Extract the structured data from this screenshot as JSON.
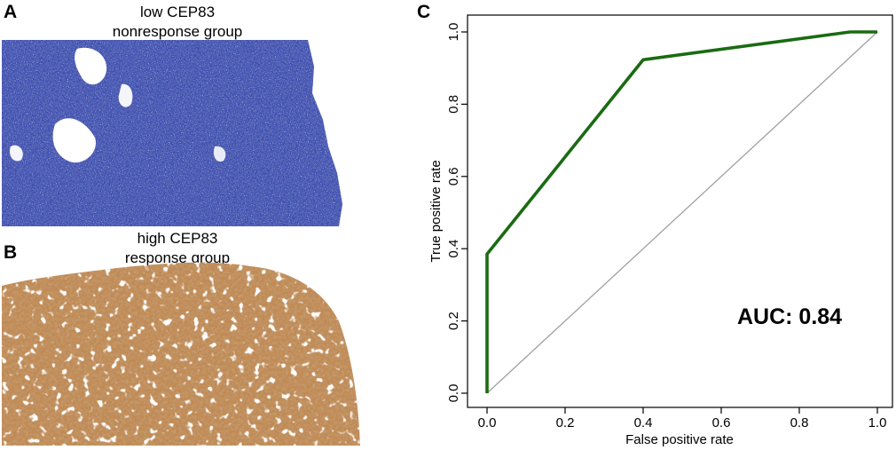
{
  "panels": {
    "a": {
      "letter": "A",
      "line1": "low CEP83",
      "line2": "nonresponse group",
      "image": "ihc-tissue-blue-stain",
      "stain_color": "#3a4fb0"
    },
    "b": {
      "letter": "B",
      "line1": "high CEP83",
      "line2": "response group",
      "image": "ihc-tissue-brown-stain",
      "stain_color": "#c08a55"
    },
    "c": {
      "letter": "C"
    }
  },
  "chart_data": {
    "type": "line",
    "xlabel": "False positive rate",
    "ylabel": "True positive rate",
    "xlim": [
      0,
      1
    ],
    "ylim": [
      0,
      1
    ],
    "xticks": [
      "0.0",
      "0.2",
      "0.4",
      "0.6",
      "0.8",
      "1.0"
    ],
    "yticks": [
      "0.0",
      "0.2",
      "0.4",
      "0.6",
      "0.8",
      "1.0"
    ],
    "grid": false,
    "series": [
      {
        "color": "#1a6b12",
        "x": [
          0.0,
          0.0,
          0.4,
          0.93,
          1.0
        ],
        "y": [
          0.0,
          0.385,
          0.923,
          1.0,
          1.0
        ]
      }
    ],
    "reference_line": {
      "x": [
        0,
        1
      ],
      "y": [
        0,
        1
      ],
      "color": "#a0a0a0"
    },
    "annotation": "AUC: 0.84"
  }
}
